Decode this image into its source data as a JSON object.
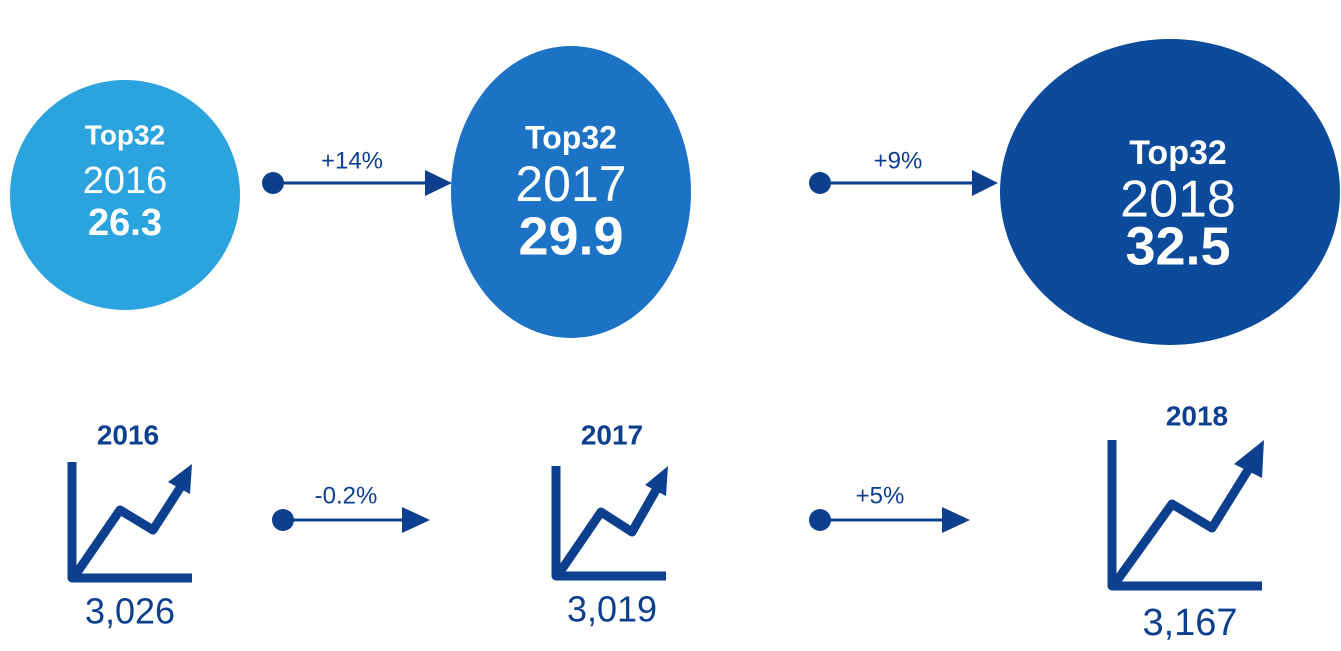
{
  "balls": [
    {
      "label": "Top32",
      "year": "2016",
      "value": "26.3"
    },
    {
      "label": "Top32",
      "year": "2017",
      "value": "29.9"
    },
    {
      "label": "Top32",
      "year": "2018",
      "value": "32.5"
    }
  ],
  "ball_changes": [
    "+14%",
    "+9%"
  ],
  "trends": [
    {
      "year": "2016",
      "value": "3,026"
    },
    {
      "year": "2017",
      "value": "3,019"
    },
    {
      "year": "2018",
      "value": "3,167"
    }
  ],
  "trend_changes": [
    "-0.2%",
    "+5%"
  ]
}
